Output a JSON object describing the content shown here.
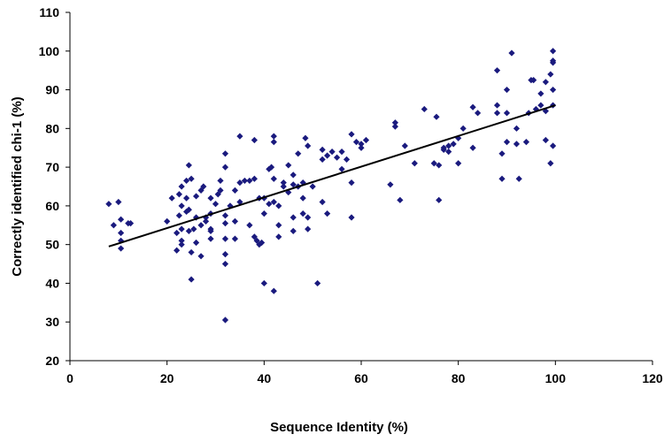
{
  "chart_data": {
    "type": "scatter",
    "title": "",
    "xlabel": "Sequence Identity (%)",
    "ylabel": "Correctly identified chi-1 (%)",
    "xlim": [
      0,
      120
    ],
    "ylim": [
      20,
      110
    ],
    "xticks": [
      0,
      20,
      40,
      60,
      80,
      100,
      120
    ],
    "yticks": [
      20,
      30,
      40,
      50,
      60,
      70,
      80,
      90,
      100,
      110
    ],
    "grid": false,
    "legend": "none",
    "marker_color": "#1a1a7e",
    "trendline": {
      "x": [
        8,
        100
      ],
      "y": [
        49.5,
        86
      ]
    },
    "points": [
      [
        8,
        60.5
      ],
      [
        9,
        55
      ],
      [
        10,
        61
      ],
      [
        10.5,
        56.5
      ],
      [
        10.5,
        53
      ],
      [
        10.5,
        51
      ],
      [
        10.5,
        49
      ],
      [
        12,
        55.5
      ],
      [
        12.5,
        55.5
      ],
      [
        20,
        56
      ],
      [
        21,
        62
      ],
      [
        22,
        53
      ],
      [
        22,
        48.5
      ],
      [
        22.5,
        63
      ],
      [
        22.5,
        57.5
      ],
      [
        23,
        65
      ],
      [
        23,
        60
      ],
      [
        23,
        54
      ],
      [
        23,
        51
      ],
      [
        23,
        50
      ],
      [
        24,
        66.5
      ],
      [
        24,
        62
      ],
      [
        24,
        58.5
      ],
      [
        24.5,
        59
      ],
      [
        24.5,
        53.5
      ],
      [
        24.5,
        70.5
      ],
      [
        25,
        41
      ],
      [
        25,
        67
      ],
      [
        25,
        48
      ],
      [
        25.5,
        54
      ],
      [
        26,
        62.5
      ],
      [
        26,
        57
      ],
      [
        26,
        50.5
      ],
      [
        27,
        64
      ],
      [
        27,
        55
      ],
      [
        27,
        47
      ],
      [
        27.5,
        65
      ],
      [
        28,
        57
      ],
      [
        28,
        56
      ],
      [
        29,
        62
      ],
      [
        29,
        58
      ],
      [
        29,
        54
      ],
      [
        29,
        53.5
      ],
      [
        29,
        51.5
      ],
      [
        30,
        60.5
      ],
      [
        30.5,
        63
      ],
      [
        31,
        64
      ],
      [
        31,
        66.5
      ],
      [
        32,
        70
      ],
      [
        32,
        73.5
      ],
      [
        32,
        57.5
      ],
      [
        32,
        55.5
      ],
      [
        32,
        51.5
      ],
      [
        32,
        47.5
      ],
      [
        32,
        45
      ],
      [
        32,
        30.5
      ],
      [
        33,
        60
      ],
      [
        34,
        64
      ],
      [
        34,
        56
      ],
      [
        34,
        51.5
      ],
      [
        35,
        66
      ],
      [
        35,
        61
      ],
      [
        35,
        78
      ],
      [
        36,
        66.5
      ],
      [
        37,
        66.5
      ],
      [
        37,
        55
      ],
      [
        38,
        67
      ],
      [
        38,
        77
      ],
      [
        38,
        52
      ],
      [
        38.5,
        51
      ],
      [
        39,
        50
      ],
      [
        39,
        62
      ],
      [
        39.5,
        50.5
      ],
      [
        40,
        40
      ],
      [
        40,
        58
      ],
      [
        40,
        62
      ],
      [
        41,
        69.5
      ],
      [
        41,
        60.5
      ],
      [
        41.5,
        70
      ],
      [
        42,
        67
      ],
      [
        42,
        61
      ],
      [
        42,
        76.5
      ],
      [
        42,
        78
      ],
      [
        42,
        38
      ],
      [
        43,
        60
      ],
      [
        43,
        55
      ],
      [
        43,
        52
      ],
      [
        44,
        66
      ],
      [
        44,
        65
      ],
      [
        45,
        63.5
      ],
      [
        45,
        70.5
      ],
      [
        46,
        68
      ],
      [
        46,
        65.5
      ],
      [
        46,
        57
      ],
      [
        46,
        53.5
      ],
      [
        47,
        73.5
      ],
      [
        47,
        65
      ],
      [
        48,
        66
      ],
      [
        48,
        62
      ],
      [
        48,
        58
      ],
      [
        48.5,
        77.5
      ],
      [
        49,
        75.5
      ],
      [
        49,
        57
      ],
      [
        49,
        54
      ],
      [
        50,
        65
      ],
      [
        51,
        40
      ],
      [
        52,
        74.5
      ],
      [
        52,
        72
      ],
      [
        52,
        61
      ],
      [
        53,
        73
      ],
      [
        53,
        58
      ],
      [
        54,
        74
      ],
      [
        55,
        72.5
      ],
      [
        56,
        69.5
      ],
      [
        56,
        74
      ],
      [
        57,
        72
      ],
      [
        58,
        78.5
      ],
      [
        58,
        57
      ],
      [
        58,
        66
      ],
      [
        59,
        76.5
      ],
      [
        60,
        75
      ],
      [
        60,
        76
      ],
      [
        61,
        77
      ],
      [
        66,
        65.5
      ],
      [
        67,
        81.5
      ],
      [
        67,
        80.5
      ],
      [
        68,
        61.5
      ],
      [
        69,
        75.5
      ],
      [
        71,
        71
      ],
      [
        73,
        85
      ],
      [
        75,
        71
      ],
      [
        75.5,
        83
      ],
      [
        76,
        61.5
      ],
      [
        76,
        70.5
      ],
      [
        77,
        74.5
      ],
      [
        77,
        75
      ],
      [
        78,
        74
      ],
      [
        78,
        75.5
      ],
      [
        79,
        76
      ],
      [
        80,
        77.5
      ],
      [
        80,
        71
      ],
      [
        81,
        80
      ],
      [
        83,
        75
      ],
      [
        83,
        85.5
      ],
      [
        84,
        84
      ],
      [
        88,
        95
      ],
      [
        88,
        86
      ],
      [
        88,
        84
      ],
      [
        89,
        73.5
      ],
      [
        89,
        67
      ],
      [
        90,
        90
      ],
      [
        90,
        84
      ],
      [
        90,
        76.5
      ],
      [
        91,
        99.5
      ],
      [
        92,
        80
      ],
      [
        92,
        76
      ],
      [
        92.5,
        67
      ],
      [
        94,
        76.5
      ],
      [
        94.5,
        84
      ],
      [
        95,
        92.5
      ],
      [
        95.5,
        92.5
      ],
      [
        96,
        85
      ],
      [
        97,
        89
      ],
      [
        97,
        86
      ],
      [
        98,
        84.5
      ],
      [
        98,
        92
      ],
      [
        98,
        77
      ],
      [
        99,
        71
      ],
      [
        99,
        94
      ],
      [
        99.5,
        97.5
      ],
      [
        99.5,
        100
      ],
      [
        99.5,
        97
      ],
      [
        99.5,
        90
      ],
      [
        99.5,
        86
      ],
      [
        99.5,
        75.5
      ]
    ]
  }
}
